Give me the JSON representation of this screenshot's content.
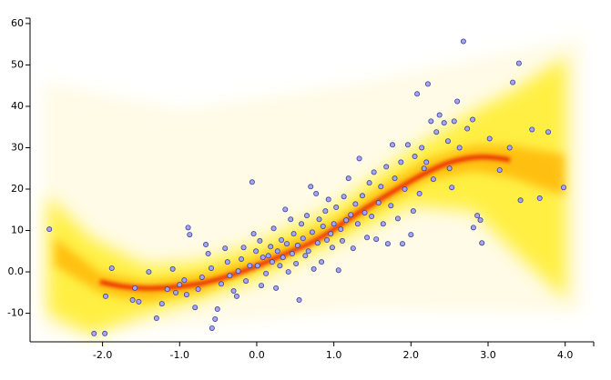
{
  "chart_data": {
    "type": "scatter",
    "color": "#a4a6f2",
    "edge_color": "#3c3f9a",
    "xlim": [
      -2.94,
      4.37
    ],
    "ylim": [
      -16.9,
      61.3
    ],
    "xticks": [
      {
        "value": -2,
        "label": "-2.0"
      },
      {
        "value": -1,
        "label": "-1.0"
      },
      {
        "value": 0,
        "label": "0.0"
      },
      {
        "value": 1,
        "label": "1.0"
      },
      {
        "value": 2,
        "label": "2.0"
      },
      {
        "value": 3,
        "label": "3.0"
      },
      {
        "value": 4,
        "label": "4.0"
      }
    ],
    "yticks": [
      -10,
      {
        "value": 0,
        "label": "0.0"
      },
      10,
      20,
      30,
      40,
      50,
      60
    ],
    "x": [
      -2.69,
      -2.11,
      -1.97,
      -1.96,
      -1.88,
      -1.61,
      -1.53,
      -1.58,
      -1.4,
      -1.3,
      -1.23,
      -1.16,
      -1.09,
      -1.05,
      -1.0,
      -0.94,
      -0.89,
      -0.87,
      -0.91,
      -0.8,
      -0.76,
      -0.71,
      -0.66,
      -0.63,
      -0.59,
      -0.54,
      -0.51,
      -0.58,
      -0.46,
      -0.41,
      -0.38,
      -0.35,
      -0.3,
      -0.26,
      -0.24,
      -0.2,
      -0.17,
      -0.14,
      -0.09,
      -0.06,
      -0.04,
      -0.01,
      0.01,
      0.04,
      0.06,
      0.08,
      0.12,
      0.15,
      0.18,
      0.2,
      0.22,
      0.25,
      0.27,
      0.3,
      0.32,
      0.34,
      0.37,
      0.39,
      0.41,
      0.44,
      0.46,
      0.48,
      0.51,
      0.53,
      0.55,
      0.58,
      0.6,
      0.63,
      0.65,
      0.67,
      0.7,
      0.72,
      0.74,
      0.77,
      0.79,
      0.81,
      0.84,
      0.86,
      0.89,
      0.91,
      0.93,
      0.96,
      0.98,
      1.0,
      1.03,
      1.06,
      1.09,
      1.11,
      1.13,
      1.16,
      1.19,
      1.22,
      1.25,
      1.28,
      1.31,
      1.33,
      1.37,
      1.4,
      1.43,
      1.46,
      1.49,
      1.52,
      1.55,
      1.58,
      1.61,
      1.64,
      1.68,
      1.7,
      1.74,
      1.76,
      1.79,
      1.83,
      1.87,
      1.89,
      1.92,
      1.96,
      2.0,
      2.03,
      2.05,
      2.08,
      2.11,
      2.14,
      2.17,
      2.2,
      2.22,
      2.26,
      2.29,
      2.33,
      2.37,
      2.43,
      2.48,
      2.5,
      2.53,
      2.56,
      2.6,
      2.63,
      2.68,
      2.73,
      2.8,
      2.81,
      2.86,
      2.9,
      2.92,
      3.02,
      3.15,
      3.28,
      3.32,
      3.4,
      3.42,
      3.57,
      3.67,
      3.78,
      3.98
    ],
    "y": [
      10.3,
      -14.9,
      -14.9,
      -5.9,
      0.9,
      -6.8,
      -7.2,
      -3.9,
      0,
      -11.2,
      -7.7,
      -4.2,
      0.7,
      -5.0,
      -3.1,
      -2.0,
      10.7,
      9.0,
      -5.5,
      -8.6,
      -4.2,
      -1.3,
      6.6,
      4.4,
      0.9,
      -11.4,
      -9.0,
      -13.6,
      -2.9,
      5.7,
      2.4,
      -0.9,
      -4.6,
      -5.9,
      0.2,
      3.1,
      5.9,
      -2.2,
      1.5,
      21.7,
      9.2,
      5.0,
      1.5,
      7.5,
      -3.3,
      3.5,
      -0.4,
      3.9,
      6.1,
      2.4,
      10.5,
      -3.9,
      5.0,
      1.5,
      7.7,
      3.5,
      15.1,
      6.8,
      0,
      12.7,
      4.4,
      9.2,
      2.0,
      6.4,
      -6.8,
      11.6,
      8.1,
      3.9,
      13.6,
      5.0,
      20.6,
      9.6,
      0.7,
      18.9,
      7.0,
      12.7,
      2.4,
      11.0,
      14.7,
      7.7,
      17.5,
      9.2,
      5.9,
      11.6,
      15.6,
      0.4,
      10.3,
      7.5,
      18.2,
      12.5,
      22.6,
      13.8,
      5.7,
      16.4,
      11.6,
      27.4,
      18.4,
      14.3,
      8.3,
      21.5,
      13.4,
      24.1,
      7.9,
      16.7,
      20.6,
      11.6,
      25.4,
      6.8,
      16.0,
      30.7,
      22.6,
      12.9,
      26.5,
      6.8,
      20.0,
      30.7,
      9.0,
      14.7,
      27.9,
      43.0,
      18.9,
      30.0,
      25.0,
      26.5,
      45.4,
      36.4,
      22.4,
      33.8,
      37.9,
      36.0,
      31.6,
      25.0,
      20.4,
      36.4,
      41.2,
      30.0,
      55.7,
      34.6,
      36.8,
      10.7,
      13.6,
      12.5,
      7.0,
      32.2,
      24.6,
      30.0,
      45.8,
      50.4,
      17.3,
      34.4,
      17.8,
      33.8,
      20.4
    ]
  }
}
